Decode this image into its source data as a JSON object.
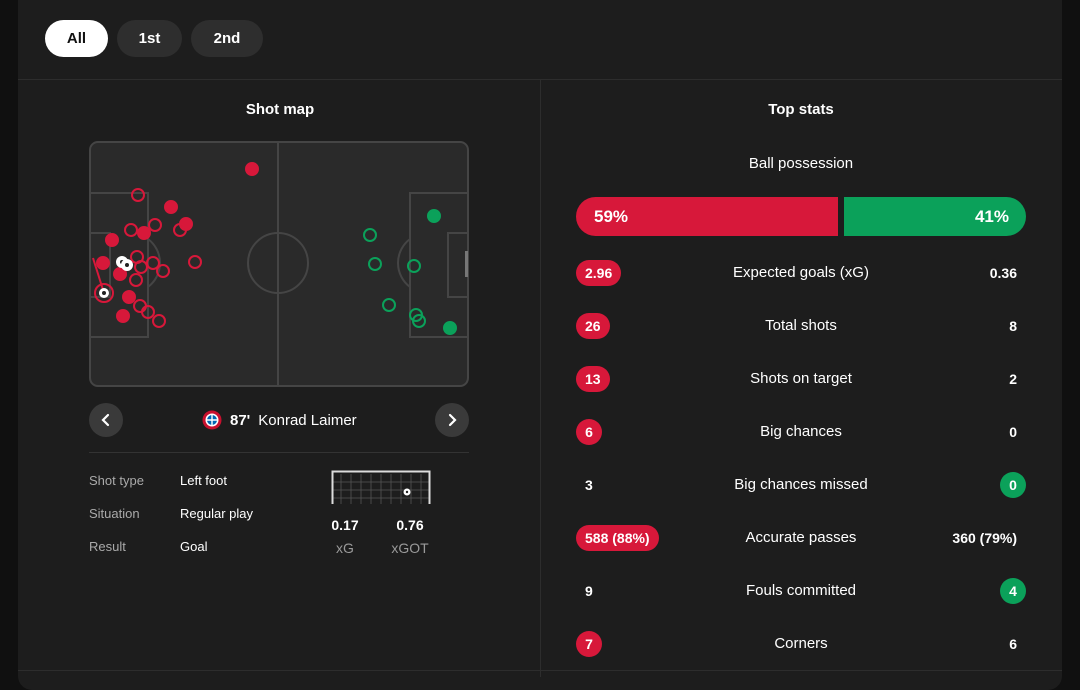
{
  "tabs": {
    "all": "All",
    "first": "1st",
    "second": "2nd"
  },
  "shot_map": {
    "title": "Shot map",
    "selected_shot": {
      "minute": "87'",
      "player": "Konrad Laimer"
    },
    "details": {
      "shot_type_label": "Shot type",
      "shot_type": "Left foot",
      "situation_label": "Situation",
      "situation": "Regular play",
      "result_label": "Result",
      "result": "Goal"
    },
    "xg_value": "0.17",
    "xg_label": "xG",
    "xgot_value": "0.76",
    "xgot_label": "xGOT"
  },
  "top_stats": {
    "title": "Top stats",
    "possession": {
      "label": "Ball possession",
      "home": "59%",
      "away": "41%",
      "home_pct": 59
    },
    "rows": [
      {
        "name": "Expected goals (xG)",
        "home": "2.96",
        "away": "0.36"
      },
      {
        "name": "Total shots",
        "home": "26",
        "away": "8"
      },
      {
        "name": "Shots on target",
        "home": "13",
        "away": "2"
      },
      {
        "name": "Big chances",
        "home": "6",
        "away": "0"
      },
      {
        "name": "Big chances missed",
        "home": "3",
        "away": "0"
      },
      {
        "name": "Accurate passes",
        "home": "588 (88%)",
        "away": "360 (79%)"
      },
      {
        "name": "Fouls committed",
        "home": "9",
        "away": "4"
      },
      {
        "name": "Corners",
        "home": "7",
        "away": "6"
      }
    ]
  },
  "colors": {
    "home": "#d7183a",
    "away": "#0ba15a",
    "background": "#1d1d1d"
  }
}
